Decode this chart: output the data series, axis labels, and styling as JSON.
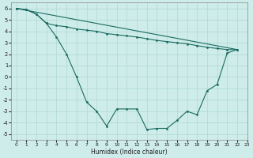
{
  "xlabel": "Humidex (Indice chaleur)",
  "xlim": [
    -0.5,
    23
  ],
  "ylim": [
    -5.5,
    6.5
  ],
  "xticks": [
    0,
    1,
    2,
    3,
    4,
    5,
    6,
    7,
    8,
    9,
    10,
    11,
    12,
    13,
    14,
    15,
    16,
    17,
    18,
    19,
    20,
    21,
    22,
    23
  ],
  "yticks": [
    -5,
    -4,
    -3,
    -2,
    -1,
    0,
    1,
    2,
    3,
    4,
    5,
    6
  ],
  "background_color": "#ceecea",
  "grid_color": "#aed8d4",
  "line_color": "#1a6b60",
  "line1_x": [
    0,
    1,
    2,
    3,
    4,
    5,
    6,
    7,
    8,
    9,
    10,
    11,
    12,
    13,
    14,
    15,
    16,
    17,
    18,
    19,
    20,
    21,
    22
  ],
  "line1_y": [
    6.0,
    5.9,
    5.5,
    4.7,
    3.5,
    2.0,
    0.0,
    -2.2,
    -3.0,
    -4.3,
    -2.8,
    -2.8,
    -2.8,
    -4.6,
    -4.5,
    -4.5,
    -3.8,
    -3.0,
    -3.3,
    -1.2,
    -0.65,
    2.1,
    2.4
  ],
  "line2_x": [
    0,
    1,
    2,
    3,
    4,
    5,
    6,
    7,
    8,
    9,
    10,
    11,
    12,
    13,
    14,
    15,
    16,
    17,
    18,
    19,
    20,
    21,
    22
  ],
  "line2_y": [
    6.0,
    5.9,
    5.5,
    4.7,
    4.5,
    4.4,
    4.2,
    4.1,
    4.0,
    3.8,
    3.7,
    3.6,
    3.5,
    3.35,
    3.2,
    3.1,
    3.0,
    2.9,
    2.75,
    2.6,
    2.5,
    2.4,
    2.4
  ],
  "line3_x": [
    0,
    22
  ],
  "line3_y": [
    6.0,
    2.4
  ]
}
